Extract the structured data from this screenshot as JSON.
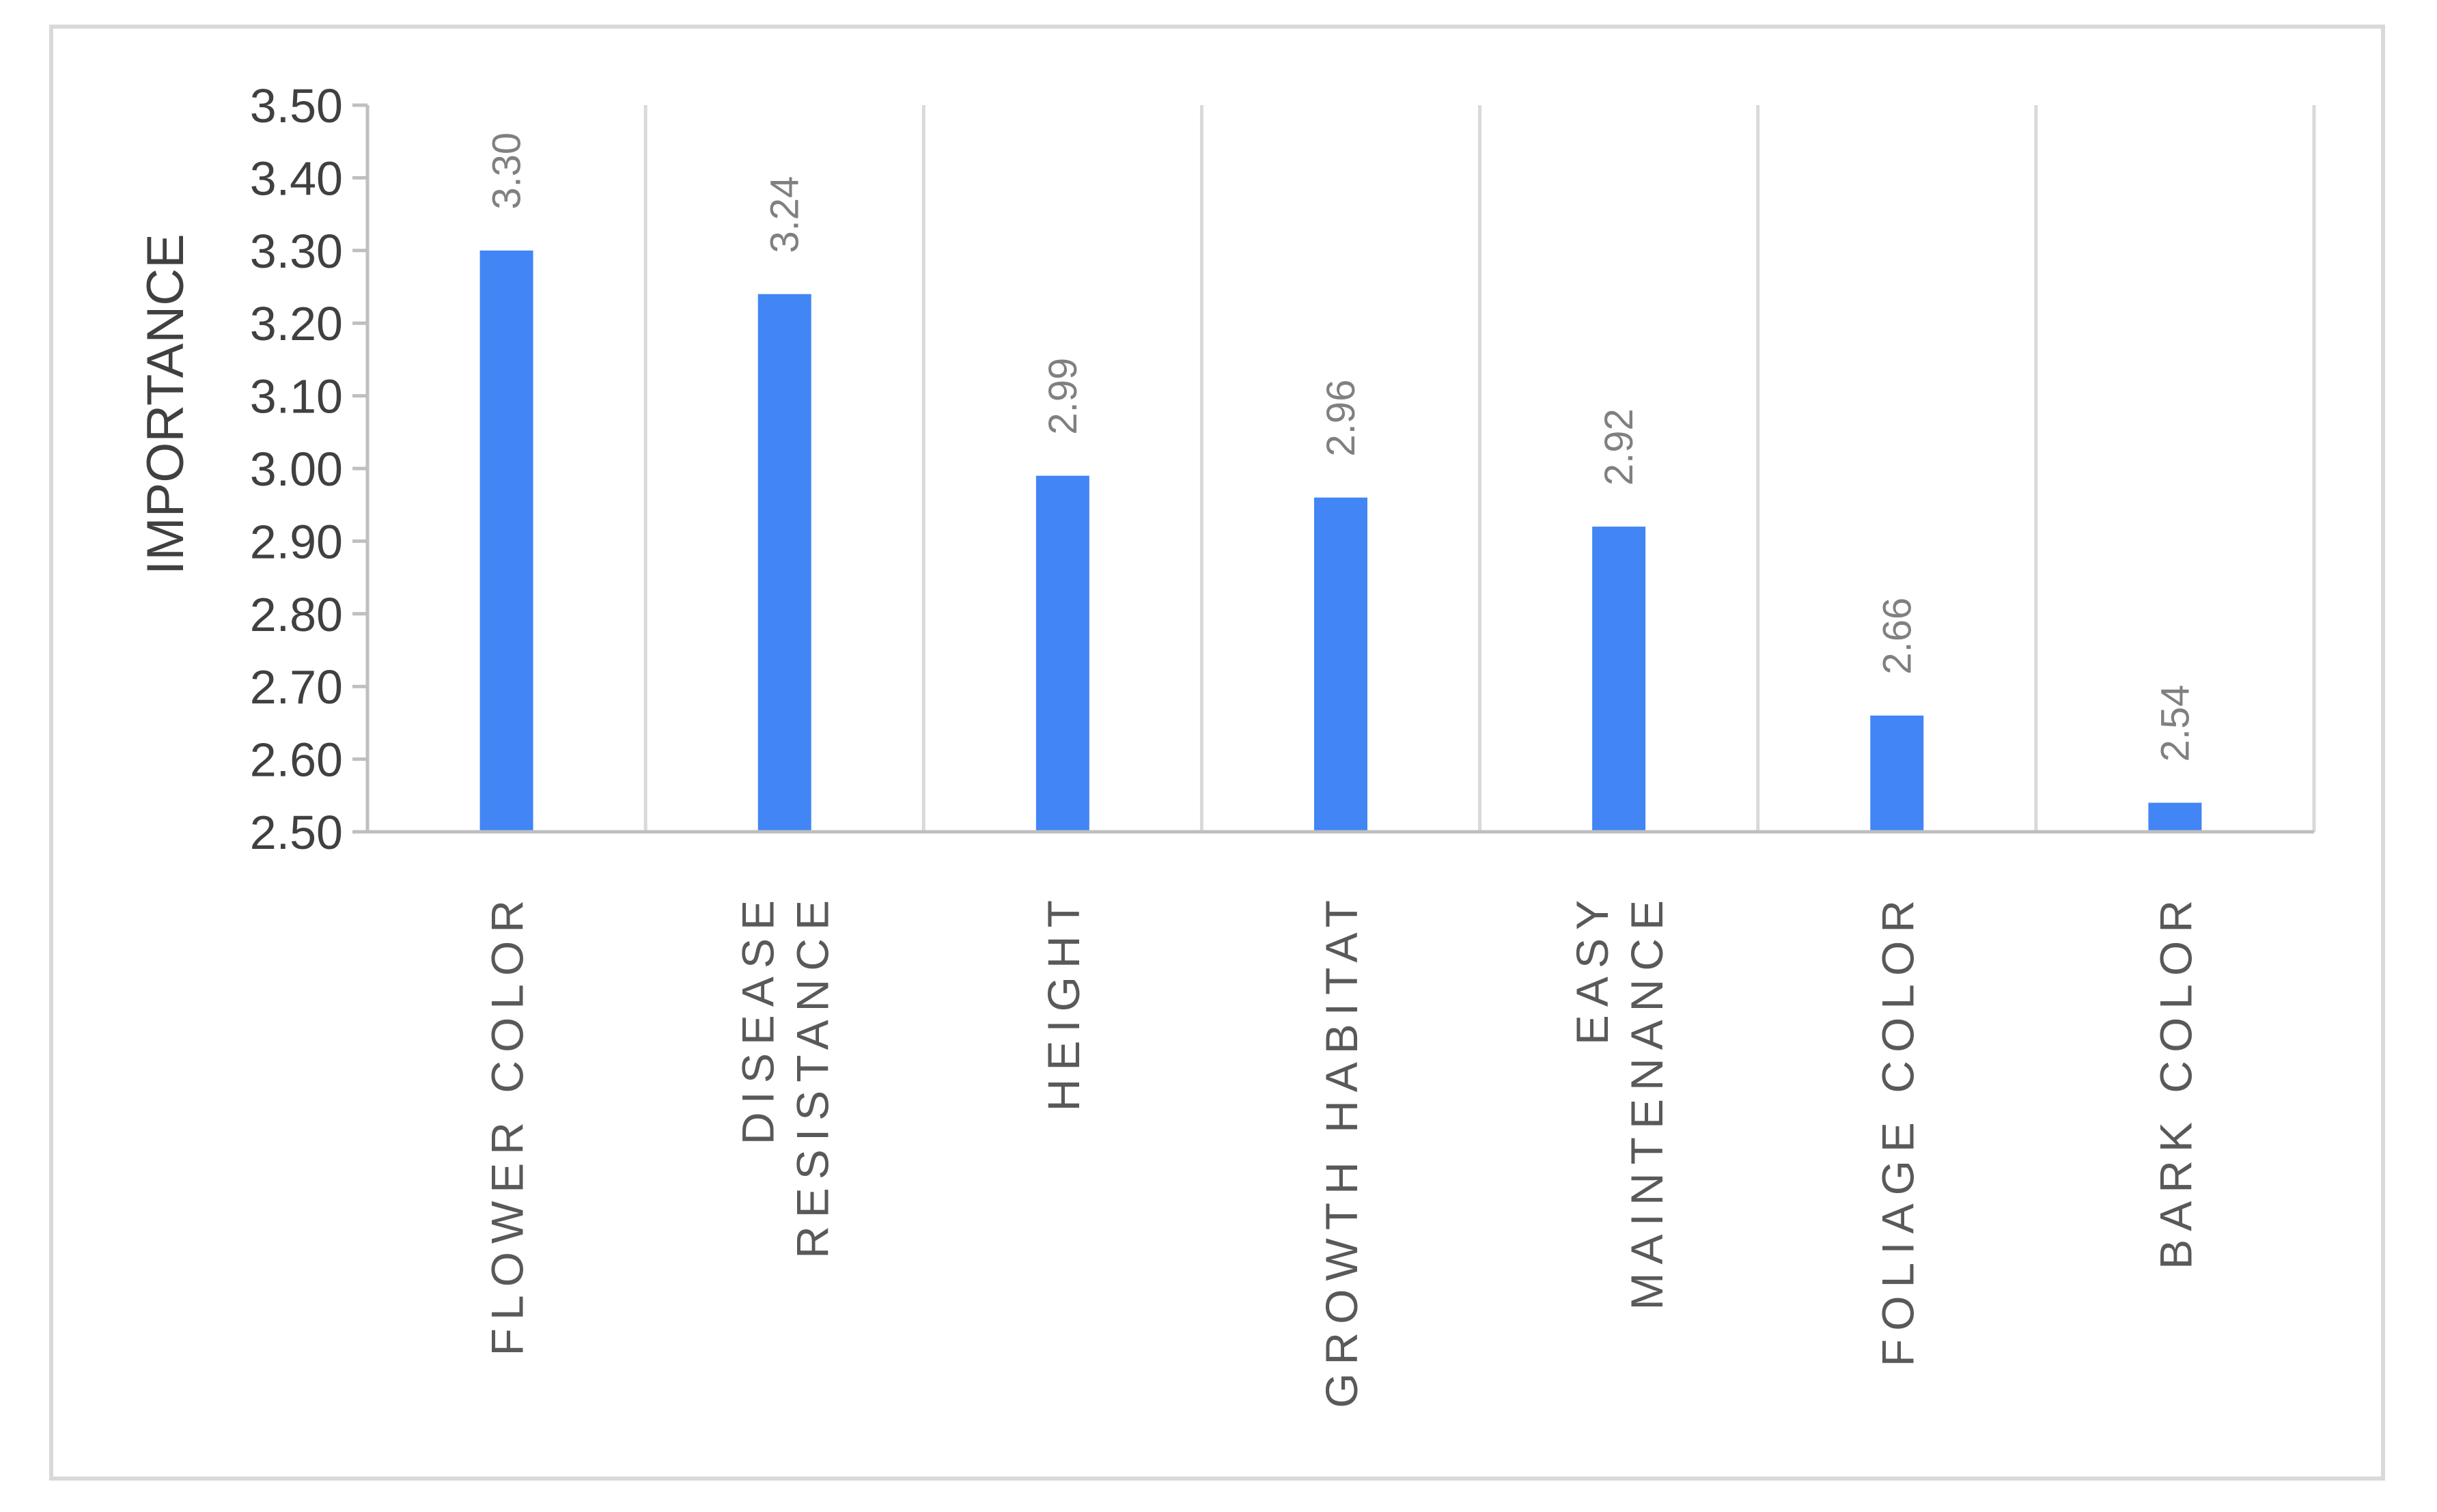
{
  "chart_data": {
    "type": "bar",
    "title": "",
    "xlabel": "",
    "ylabel": "IMPORTANCE",
    "ylim": [
      2.5,
      3.5
    ],
    "yticks": [
      "2.50",
      "2.60",
      "2.70",
      "2.80",
      "2.90",
      "3.00",
      "3.10",
      "3.20",
      "3.30",
      "3.40",
      "3.50"
    ],
    "categories": [
      [
        "FLOWER COLOR"
      ],
      [
        "DISEASE",
        "RESISTANCE"
      ],
      [
        "HEIGHT"
      ],
      [
        "GROWTH HABITAT"
      ],
      [
        "EASY",
        "MAINTENANCE"
      ],
      [
        "FOLIAGE COLOR"
      ],
      [
        "BARK COLOR"
      ]
    ],
    "values": [
      3.3,
      3.24,
      2.99,
      2.96,
      2.92,
      2.66,
      2.54
    ],
    "data_labels": [
      "3.30",
      "3.24",
      "2.99",
      "2.96",
      "2.92",
      "2.66",
      "2.54"
    ],
    "grid": "vertical",
    "legend": "none",
    "colors": {
      "bar": "#4285f4",
      "grid": "#d9d9d9",
      "axis": "#bfbfbf",
      "frame": "#d9d9d9"
    }
  }
}
